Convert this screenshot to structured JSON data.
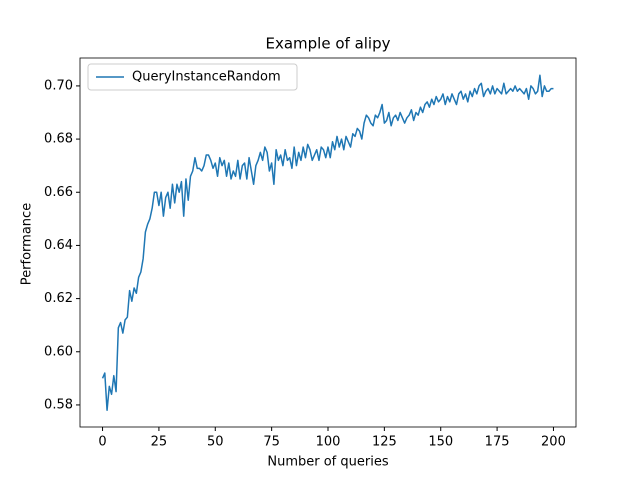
{
  "chart_data": {
    "type": "line",
    "title": "Example of alipy",
    "x_label": "Number of queries",
    "y_label": "Performance",
    "x": [
      0,
      1,
      2,
      3,
      4,
      5,
      6,
      7,
      8,
      9,
      10,
      11,
      12,
      13,
      14,
      15,
      16,
      17,
      18,
      19,
      20,
      21,
      22,
      23,
      24,
      25,
      26,
      27,
      28,
      29,
      30,
      31,
      32,
      33,
      34,
      35,
      36,
      37,
      38,
      39,
      40,
      41,
      42,
      43,
      44,
      45,
      46,
      47,
      48,
      49,
      50,
      51,
      52,
      53,
      54,
      55,
      56,
      57,
      58,
      59,
      60,
      61,
      62,
      63,
      64,
      65,
      66,
      67,
      68,
      69,
      70,
      71,
      72,
      73,
      74,
      75,
      76,
      77,
      78,
      79,
      80,
      81,
      82,
      83,
      84,
      85,
      86,
      87,
      88,
      89,
      90,
      91,
      92,
      93,
      94,
      95,
      96,
      97,
      98,
      99,
      100,
      101,
      102,
      103,
      104,
      105,
      106,
      107,
      108,
      109,
      110,
      111,
      112,
      113,
      114,
      115,
      116,
      117,
      118,
      119,
      120,
      121,
      122,
      123,
      124,
      125,
      126,
      127,
      128,
      129,
      130,
      131,
      132,
      133,
      134,
      135,
      136,
      137,
      138,
      139,
      140,
      141,
      142,
      143,
      144,
      145,
      146,
      147,
      148,
      149,
      150,
      151,
      152,
      153,
      154,
      155,
      156,
      157,
      158,
      159,
      160,
      161,
      162,
      163,
      164,
      165,
      166,
      167,
      168,
      169,
      170,
      171,
      172,
      173,
      174,
      175,
      176,
      177,
      178,
      179,
      180,
      181,
      182,
      183,
      184,
      185,
      186,
      187,
      188,
      189,
      190,
      191,
      192,
      193,
      194,
      195,
      196,
      197,
      198,
      199,
      200
    ],
    "series": [
      {
        "name": "QueryInstanceRandom",
        "color": "#1f77b4",
        "values": [
          0.59,
          0.592,
          0.578,
          0.587,
          0.584,
          0.591,
          0.585,
          0.609,
          0.611,
          0.607,
          0.612,
          0.613,
          0.623,
          0.619,
          0.624,
          0.622,
          0.628,
          0.63,
          0.635,
          0.645,
          0.648,
          0.65,
          0.654,
          0.66,
          0.66,
          0.655,
          0.66,
          0.651,
          0.658,
          0.66,
          0.654,
          0.663,
          0.656,
          0.663,
          0.66,
          0.664,
          0.651,
          0.665,
          0.657,
          0.666,
          0.668,
          0.673,
          0.669,
          0.669,
          0.668,
          0.67,
          0.674,
          0.674,
          0.672,
          0.669,
          0.671,
          0.666,
          0.673,
          0.67,
          0.672,
          0.666,
          0.671,
          0.665,
          0.668,
          0.666,
          0.672,
          0.665,
          0.67,
          0.671,
          0.665,
          0.673,
          0.668,
          0.663,
          0.67,
          0.672,
          0.675,
          0.672,
          0.677,
          0.675,
          0.668,
          0.671,
          0.663,
          0.676,
          0.672,
          0.674,
          0.67,
          0.676,
          0.672,
          0.673,
          0.669,
          0.677,
          0.67,
          0.675,
          0.672,
          0.677,
          0.673,
          0.678,
          0.676,
          0.672,
          0.674,
          0.676,
          0.672,
          0.677,
          0.676,
          0.673,
          0.677,
          0.673,
          0.679,
          0.676,
          0.681,
          0.677,
          0.68,
          0.676,
          0.681,
          0.679,
          0.677,
          0.682,
          0.681,
          0.684,
          0.683,
          0.68,
          0.686,
          0.689,
          0.688,
          0.686,
          0.685,
          0.689,
          0.688,
          0.69,
          0.693,
          0.686,
          0.687,
          0.69,
          0.685,
          0.688,
          0.689,
          0.687,
          0.69,
          0.688,
          0.686,
          0.688,
          0.689,
          0.691,
          0.687,
          0.69,
          0.689,
          0.692,
          0.69,
          0.693,
          0.694,
          0.692,
          0.695,
          0.693,
          0.696,
          0.694,
          0.695,
          0.697,
          0.693,
          0.696,
          0.694,
          0.697,
          0.695,
          0.693,
          0.697,
          0.698,
          0.695,
          0.697,
          0.694,
          0.698,
          0.696,
          0.699,
          0.697,
          0.7,
          0.701,
          0.696,
          0.698,
          0.699,
          0.697,
          0.7,
          0.697,
          0.699,
          0.698,
          0.697,
          0.701,
          0.697,
          0.698,
          0.699,
          0.698,
          0.7,
          0.698,
          0.699,
          0.698,
          0.697,
          0.699,
          0.695,
          0.7,
          0.699,
          0.697,
          0.698,
          0.704,
          0.696,
          0.7,
          0.698,
          0.698,
          0.699,
          0.699
        ]
      }
    ],
    "xlim": [
      -10,
      210
    ],
    "ylim": [
      0.5717,
      0.7105
    ],
    "xticks": [
      0,
      25,
      50,
      75,
      100,
      125,
      150,
      175,
      200
    ],
    "yticks": [
      0.58,
      {
        "value": 0.6,
        "label": "0.60"
      },
      0.62,
      0.64,
      0.66,
      0.68,
      {
        "value": 0.7,
        "label": "0.70"
      }
    ],
    "grid": false,
    "legend": "upper left"
  }
}
